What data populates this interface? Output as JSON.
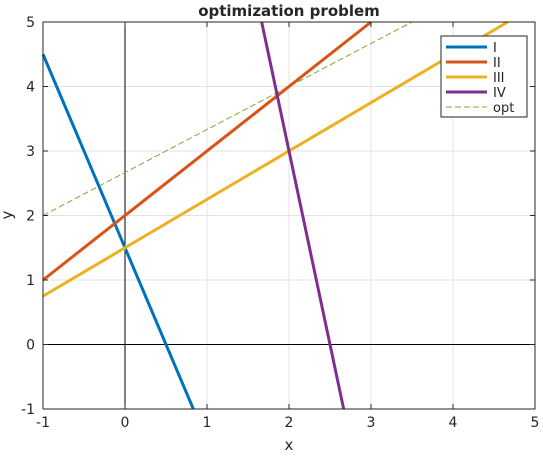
{
  "chart_data": {
    "type": "line",
    "title": "optimization problem",
    "xlabel": "x",
    "ylabel": "y",
    "xlim": [
      -1,
      5
    ],
    "ylim": [
      -1,
      5
    ],
    "xticks": [
      -1,
      0,
      1,
      2,
      3,
      4,
      5
    ],
    "yticks": [
      -1,
      0,
      1,
      2,
      3,
      4,
      5
    ],
    "grid": true,
    "legend_position": "top-right",
    "zero_axes": true,
    "series": [
      {
        "name": "I",
        "color": "#0072BD",
        "style": "solid",
        "x": [
          -1,
          0.8333
        ],
        "y": [
          4.5,
          -1
        ]
      },
      {
        "name": "II",
        "color": "#D95319",
        "style": "solid",
        "x": [
          -1,
          3
        ],
        "y": [
          1,
          5
        ]
      },
      {
        "name": "III",
        "color": "#EDB120",
        "style": "solid",
        "x": [
          -1,
          4.6667
        ],
        "y": [
          0.75,
          5
        ]
      },
      {
        "name": "IV",
        "color": "#7E2F8E",
        "style": "solid",
        "x": [
          1.6667,
          2.6667
        ],
        "y": [
          5,
          -1
        ]
      },
      {
        "name": "opt",
        "color": "#77AC30",
        "style": "dashed",
        "x": [
          -1,
          3.5
        ],
        "y": [
          2,
          5
        ]
      }
    ]
  }
}
